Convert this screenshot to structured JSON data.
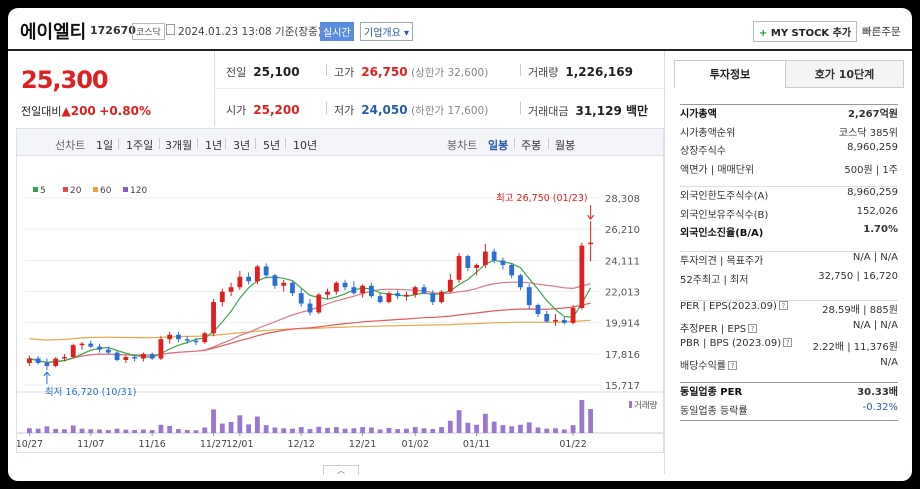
{
  "header": {
    "name": "에이엘티",
    "code": "172670",
    "market": "코스닥",
    "datetime": "2024.01.23 13:08 기준(장중)",
    "realtime": "실시간",
    "company_info": "기업개요",
    "mystock": "MY STOCK 추가",
    "quick_order": "빠른주문"
  },
  "price": {
    "current": "25,300",
    "change_label": "전일대비",
    "change": "200",
    "change_pct": "+0.80%"
  },
  "stats": {
    "prev_label": "전일",
    "prev": "25,100",
    "high_label": "고가",
    "high": "26,750",
    "upper": "(상한가 32,600)",
    "vol_label": "거래량",
    "vol": "1,226,169",
    "open_label": "시가",
    "open": "25,200",
    "low_label": "저가",
    "low": "24,050",
    "lower": "(하한가 17,600)",
    "amt_label": "거래대금",
    "amt": "31,129 백만"
  },
  "period": {
    "line_label": "선차트",
    "line_items": [
      "1일",
      "1주일",
      "3개월",
      "1년",
      "3년",
      "5년",
      "10년"
    ],
    "candle_label": "봉차트",
    "candle_items": [
      "일봉",
      "주봉",
      "월봉"
    ],
    "active": "일봉"
  },
  "chart_data": {
    "type": "candlestick",
    "legend": [
      {
        "name": "5",
        "color": "#2ea84a"
      },
      {
        "name": "20",
        "color": "#e14b4b"
      },
      {
        "name": "60",
        "color": "#f0a030"
      },
      {
        "name": "120",
        "color": "#8a5cc8"
      }
    ],
    "y_ticks": [
      "28,308",
      "26,210",
      "24,111",
      "22,013",
      "19,914",
      "17,816",
      "15,717"
    ],
    "ylim": [
      15717,
      28308
    ],
    "x_ticks": [
      "10/27",
      "11/07",
      "11/16",
      "11/27",
      "12/01",
      "12/12",
      "12/21",
      "01/02",
      "01/11",
      "01/22"
    ],
    "max_label": "최고 26,750 (01/23)",
    "min_label": "최저 16,720 (10/31)",
    "volume_label": "거래량",
    "candles": [
      [
        17200,
        17700,
        17000,
        17500
      ],
      [
        17500,
        17650,
        17100,
        17200
      ],
      [
        17200,
        17500,
        16720,
        17000
      ],
      [
        17000,
        17600,
        16900,
        17500
      ],
      [
        17500,
        17800,
        17300,
        17600
      ],
      [
        17600,
        18500,
        17500,
        18400
      ],
      [
        18400,
        18600,
        18100,
        18500
      ],
      [
        18500,
        18700,
        18200,
        18300
      ],
      [
        18300,
        18500,
        17900,
        18100
      ],
      [
        18100,
        18300,
        17800,
        17900
      ],
      [
        17900,
        18000,
        17300,
        17400
      ],
      [
        17400,
        17700,
        17200,
        17600
      ],
      [
        17600,
        17800,
        17300,
        17500
      ],
      [
        17500,
        17900,
        17300,
        17800
      ],
      [
        17800,
        17900,
        17400,
        17500
      ],
      [
        17500,
        19000,
        17400,
        18800
      ],
      [
        18800,
        19300,
        18500,
        19100
      ],
      [
        19100,
        19300,
        18600,
        18800
      ],
      [
        18800,
        19000,
        18500,
        18700
      ],
      [
        18700,
        18900,
        18400,
        18600
      ],
      [
        18600,
        19300,
        18500,
        19200
      ],
      [
        19200,
        21500,
        19000,
        21300
      ],
      [
        21300,
        22200,
        21000,
        22000
      ],
      [
        22000,
        22600,
        21700,
        22300
      ],
      [
        22300,
        23400,
        22100,
        23000
      ],
      [
        23000,
        23300,
        22500,
        22700
      ],
      [
        22700,
        23800,
        22500,
        23700
      ],
      [
        23700,
        23900,
        22900,
        23100
      ],
      [
        23100,
        23200,
        22200,
        22400
      ],
      [
        22400,
        22800,
        22000,
        22600
      ],
      [
        22600,
        22700,
        21700,
        21900
      ],
      [
        21900,
        22200,
        21000,
        21200
      ],
      [
        21200,
        21500,
        20400,
        20600
      ],
      [
        20600,
        21900,
        20500,
        21800
      ],
      [
        21800,
        22200,
        21500,
        22000
      ],
      [
        22000,
        22700,
        21800,
        22600
      ],
      [
        22600,
        22800,
        22100,
        22300
      ],
      [
        22300,
        22700,
        21800,
        21900
      ],
      [
        21900,
        22500,
        21600,
        22400
      ],
      [
        22400,
        22600,
        21600,
        21700
      ],
      [
        21700,
        21900,
        21200,
        21300
      ],
      [
        21300,
        22000,
        21200,
        21900
      ],
      [
        21900,
        22100,
        21500,
        21700
      ],
      [
        21700,
        22000,
        21400,
        21800
      ],
      [
        21800,
        22400,
        21600,
        22300
      ],
      [
        22300,
        22500,
        21800,
        21900
      ],
      [
        21900,
        22100,
        21100,
        21300
      ],
      [
        21300,
        22100,
        21200,
        22000
      ],
      [
        22000,
        23200,
        21900,
        22800
      ],
      [
        22800,
        24600,
        22600,
        24400
      ],
      [
        24400,
        24500,
        23400,
        23600
      ],
      [
        23600,
        23900,
        23100,
        23800
      ],
      [
        23800,
        25200,
        23600,
        24700
      ],
      [
        24700,
        24900,
        23900,
        24100
      ],
      [
        24100,
        24300,
        23500,
        23800
      ],
      [
        23800,
        23900,
        22900,
        23100
      ],
      [
        23100,
        23200,
        22100,
        22300
      ],
      [
        22300,
        22500,
        20800,
        21100
      ],
      [
        21100,
        21200,
        20300,
        20500
      ],
      [
        20500,
        20700,
        19900,
        20000
      ],
      [
        20000,
        20500,
        19700,
        20100
      ],
      [
        20100,
        20300,
        19800,
        19900
      ],
      [
        19900,
        21100,
        19800,
        20900
      ],
      [
        20900,
        25300,
        20800,
        25100
      ],
      [
        25200,
        26750,
        24050,
        25300
      ]
    ],
    "volume": [
      24,
      22,
      34,
      21,
      19,
      38,
      22,
      19,
      18,
      15,
      22,
      17,
      15,
      18,
      15,
      42,
      36,
      20,
      15,
      14,
      28,
      120,
      48,
      56,
      90,
      44,
      84,
      40,
      28,
      24,
      22,
      30,
      20,
      32,
      26,
      30,
      22,
      24,
      30,
      28,
      18,
      26,
      20,
      22,
      30,
      24,
      20,
      30,
      62,
      116,
      52,
      42,
      98,
      58,
      40,
      34,
      42,
      54,
      28,
      22,
      24,
      18,
      40,
      168,
      122
    ]
  },
  "investment": {
    "tab1": "투자정보",
    "tab2": "호가 10단계",
    "rows1": [
      {
        "k": "시가총액",
        "v": "2,267억원",
        "bold": true
      },
      {
        "k": "시가총액순위",
        "v": "코스닥 385위"
      },
      {
        "k": "상장주식수",
        "v": "8,960,259"
      },
      {
        "k": "액면가 | 매매단위",
        "v": "500원 | 1주"
      }
    ],
    "rows2": [
      {
        "k": "외국인한도주식수(A)",
        "v": "8,960,259"
      },
      {
        "k": "외국인보유주식수(B)",
        "v": "152,026"
      },
      {
        "k": "외국인소진율(B/A)",
        "v": "1.70%",
        "bold": true
      }
    ],
    "rows3": [
      {
        "k": "투자의견 | 목표주가",
        "v": "N/A | N/A"
      },
      {
        "k": "52주최고 | 최저",
        "v": "32,750 | 16,720"
      }
    ],
    "rows4": [
      {
        "k": "PER | EPS(2023.09)",
        "v": "28.59배 | 885원",
        "q": true
      },
      {
        "k": "추정PER | EPS",
        "v": "N/A | N/A",
        "q": true
      },
      {
        "k": "PBR | BPS (2023.09)",
        "v": "2.22배 | 11,376원",
        "q": true
      },
      {
        "k": "배당수익률",
        "v": "N/A",
        "q": true
      }
    ],
    "rows5": [
      {
        "k": "동일업종 PER",
        "v": "30.33배",
        "bold": true
      },
      {
        "k": "동일업종 등락률",
        "v": "-0.32%",
        "blue": true
      }
    ]
  }
}
